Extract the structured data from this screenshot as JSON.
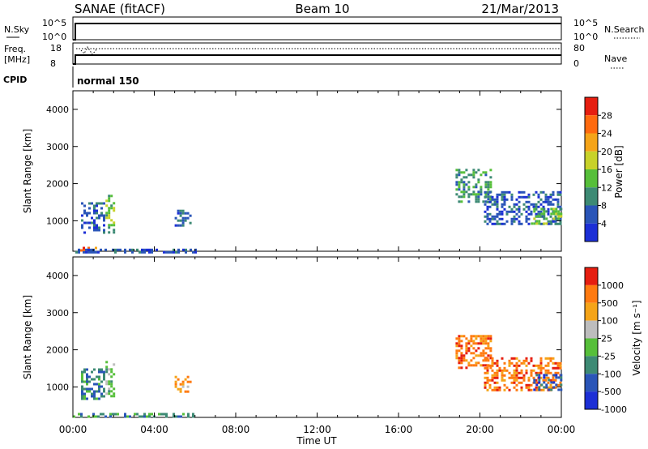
{
  "header": {
    "station": "SANAE (fitACF)",
    "beam": "Beam 10",
    "date": "21/Mar/2013"
  },
  "top_panels": {
    "nsky_label": "N.Sky",
    "nsky_ticks": [
      "10^5",
      "10^0"
    ],
    "nsearch_label": "N.Search",
    "nsearch_ticks": [
      "10^5",
      "10^0"
    ],
    "freq_label_line1": "Freq.",
    "freq_label_line2": "[MHz]",
    "freq_ticks": [
      "18",
      "8"
    ],
    "nave_label": "Nave",
    "nave_ticks": [
      "80",
      "0"
    ],
    "cpid_label": "CPID",
    "cpid_value": "normal 150"
  },
  "x_axis": {
    "label": "Time UT",
    "ticks": [
      "00:00",
      "04:00",
      "08:00",
      "12:00",
      "16:00",
      "20:00",
      "00:00"
    ]
  },
  "colors": {
    "scale_power": [
      "#1c2fd6",
      "#2a55b8",
      "#3d8a74",
      "#56bf3a",
      "#c8d22a",
      "#f5a418",
      "#ff6a0f",
      "#e61e10"
    ],
    "scale_velocity": [
      "#1c2fd6",
      "#2a55b8",
      "#3d8a74",
      "#56bf3a",
      "#bdbdbd",
      "#f5a418",
      "#ff7a10",
      "#e61e10"
    ]
  },
  "chart_data": [
    {
      "type": "heatmap",
      "panel": "power",
      "ylabel": "Slant Range [km]",
      "y_ticks": [
        "4000",
        "3000",
        "2000",
        "1000"
      ],
      "ylim": [
        180,
        4500
      ],
      "xlim_hours": [
        0,
        24
      ],
      "colorbar_label": "Power [dB]",
      "colorbar_ticks": [
        "28",
        "24",
        "20",
        "16",
        "12",
        "8",
        "4"
      ],
      "colorbar_range": [
        0,
        32
      ],
      "regions": [
        {
          "t": [
            1.6,
            2.0
          ],
          "r": [
            700,
            1700
          ],
          "level": 3
        },
        {
          "t": [
            0.4,
            1.5
          ],
          "r": [
            650,
            1500
          ],
          "level": 1
        },
        {
          "t": [
            5.0,
            5.8
          ],
          "r": [
            900,
            1300
          ],
          "level": 1
        },
        {
          "t": [
            18.8,
            20.5
          ],
          "r": [
            1500,
            2400
          ],
          "level": 2
        },
        {
          "t": [
            20.2,
            24.0
          ],
          "r": [
            900,
            1800
          ],
          "level": 1
        },
        {
          "t": [
            22.5,
            24.0
          ],
          "r": [
            950,
            1350
          ],
          "level": 3
        },
        {
          "t": [
            0.0,
            1.2
          ],
          "r": [
            180,
            300
          ],
          "level": 6
        },
        {
          "t": [
            0.0,
            6.0
          ],
          "r": [
            180,
            250
          ],
          "level": 1
        }
      ]
    },
    {
      "type": "heatmap",
      "panel": "velocity",
      "ylabel": "Slant Range [km]",
      "y_ticks": [
        "4000",
        "3000",
        "2000",
        "1000"
      ],
      "ylim": [
        180,
        4500
      ],
      "xlim_hours": [
        0,
        24
      ],
      "colorbar_label": "Velocity [m s⁻¹]",
      "colorbar_ticks": [
        "1000",
        "500",
        "100",
        "25",
        "-25",
        "-100",
        "-500",
        "-1000"
      ],
      "colorbar_range": [
        -1000,
        1000
      ],
      "regions": [
        {
          "t": [
            1.6,
            2.0
          ],
          "r": [
            700,
            1700
          ],
          "level": 3
        },
        {
          "t": [
            0.4,
            1.5
          ],
          "r": [
            650,
            1500
          ],
          "level": 2
        },
        {
          "t": [
            5.0,
            5.8
          ],
          "r": [
            900,
            1300
          ],
          "level": 5
        },
        {
          "t": [
            18.8,
            20.5
          ],
          "r": [
            1500,
            2400
          ],
          "level": 6
        },
        {
          "t": [
            20.2,
            24.0
          ],
          "r": [
            900,
            1800
          ],
          "level": 6
        },
        {
          "t": [
            22.5,
            24.0
          ],
          "r": [
            950,
            1350
          ],
          "level": 1
        },
        {
          "t": [
            0.0,
            6.0
          ],
          "r": [
            180,
            300
          ],
          "level": 2
        }
      ]
    }
  ]
}
